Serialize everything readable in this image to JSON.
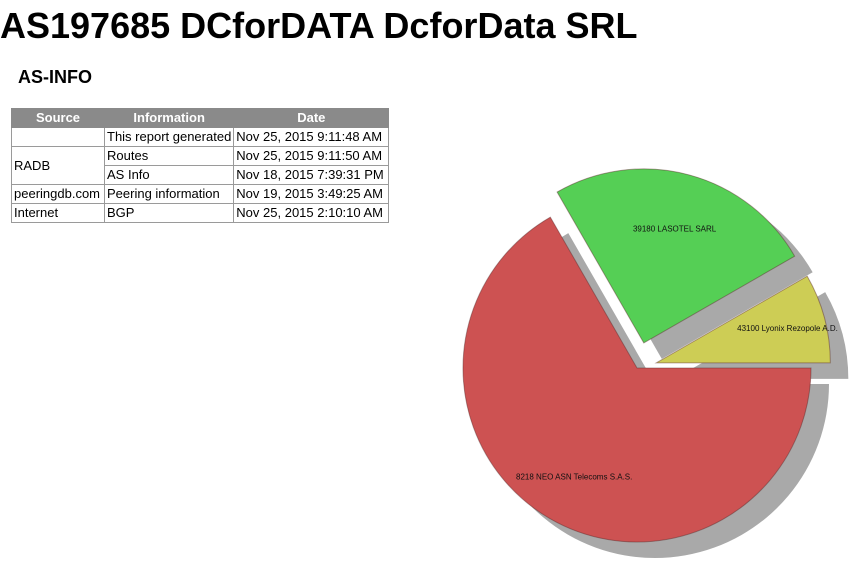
{
  "title": "AS197685 DCforDATA DcforData SRL",
  "section_title": "AS-INFO",
  "table": {
    "headers": {
      "source": "Source",
      "information": "Information",
      "date": "Date"
    },
    "rows": [
      {
        "source": "",
        "information": "This report generated",
        "date": "Nov 25, 2015 9:11:48 AM"
      },
      {
        "source": "RADB",
        "information": "Routes",
        "date": "Nov 25, 2015 9:11:50 AM"
      },
      {
        "source": "",
        "information": "AS Info",
        "date": "Nov 18, 2015 7:39:31 PM"
      },
      {
        "source": "peeringdb.com",
        "information": "Peering information",
        "date": "Nov 19, 2015 3:49:25 AM"
      },
      {
        "source": "Internet",
        "information": "BGP",
        "date": "Nov 25, 2015 2:10:10 AM"
      }
    ]
  },
  "chart_data": {
    "type": "pie",
    "title": "",
    "slices": [
      {
        "label": "8218 NEO ASN Telecoms S.A.S.",
        "value": 66.7,
        "color": "#cd5252"
      },
      {
        "label": "39180 LASOTEL SARL",
        "value": 25.0,
        "color": "#55cf55"
      },
      {
        "label": "43100 Lyonix Rezopole A.D.",
        "value": 8.3,
        "color": "#cdcd55"
      }
    ],
    "exploded": true,
    "shadow": true
  }
}
